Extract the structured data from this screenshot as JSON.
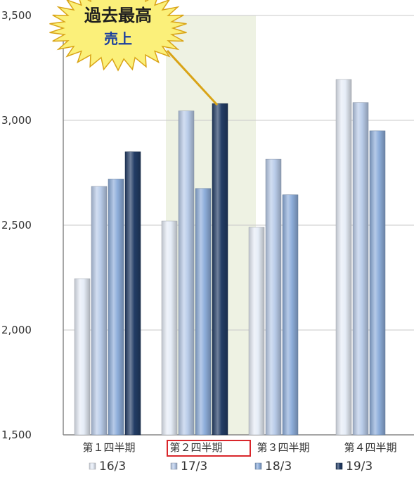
{
  "chart_data": {
    "type": "bar",
    "categories": [
      "第１四半期",
      "第２四半期",
      "第３四半期",
      "第４四半期"
    ],
    "series": [
      {
        "name": "16/3",
        "values": [
          2245,
          2520,
          2490,
          3195
        ],
        "color": "#e6edf7"
      },
      {
        "name": "17/3",
        "values": [
          2685,
          3045,
          2815,
          3085
        ],
        "color": "#b9cce9"
      },
      {
        "name": "18/3",
        "values": [
          2720,
          2675,
          2645,
          2950
        ],
        "color": "#8eaedb"
      },
      {
        "name": "19/3",
        "values": [
          2850,
          3080,
          null,
          null
        ],
        "color": "#233d66"
      }
    ],
    "ylim": [
      1500,
      3500
    ],
    "yticks": [
      1500,
      2000,
      2500,
      3000,
      3500
    ],
    "ytick_labels": [
      "1,500",
      "2,000",
      "2,500",
      "3,000",
      "3,500"
    ],
    "grid": true,
    "legend": "bottom",
    "highlighted_category_index": 1,
    "highlight_color": "#eef2e3",
    "callout": {
      "line1": "過去最高",
      "line2": "売上",
      "target_series": 3,
      "target_category": 1
    }
  }
}
